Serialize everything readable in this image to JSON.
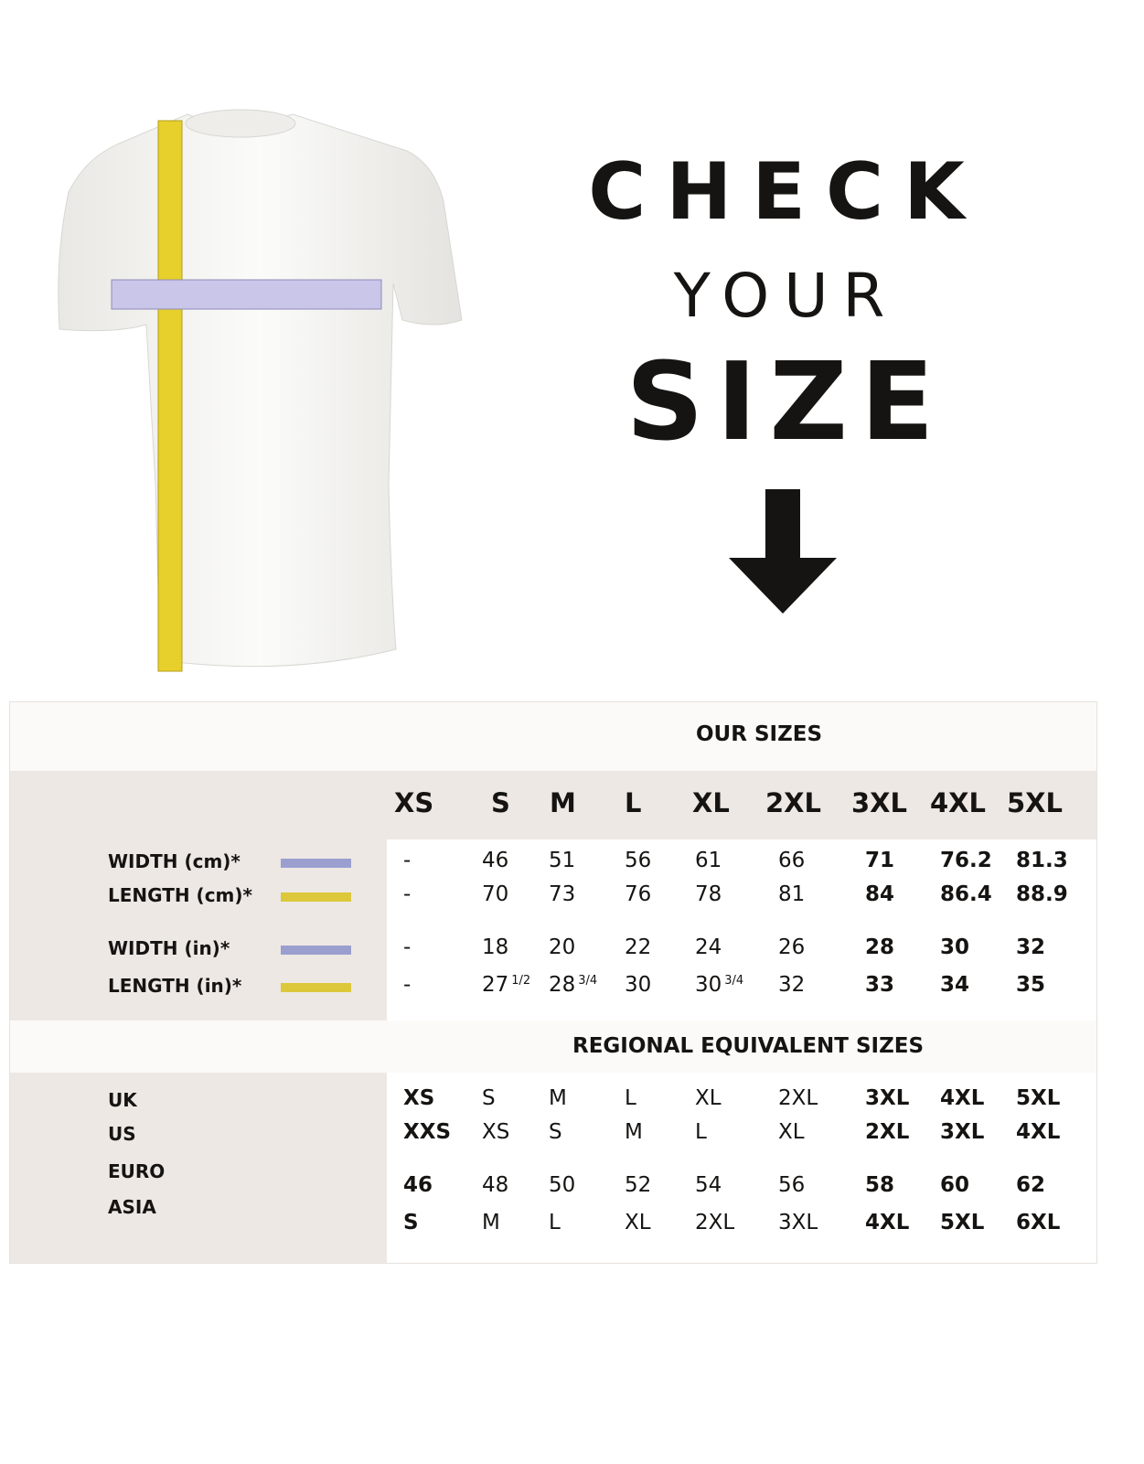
{
  "heading": {
    "line1": "CHECK",
    "line2": "YOUR",
    "line3": "SIZE"
  },
  "colors": {
    "width_swatch": "#9b9fd0",
    "length_swatch": "#dcc83a",
    "panel": "#ede8e4"
  },
  "icons": [
    "t-shirt-image",
    "tape-measure-icon",
    "down-arrow-icon"
  ],
  "our_sizes": {
    "title": "OUR SIZES",
    "sizes": [
      "XS",
      "S",
      "M",
      "L",
      "XL",
      "2XL",
      "3XL",
      "4XL",
      "5XL"
    ],
    "rows": [
      {
        "label": "WIDTH (cm)*",
        "swatch": "width",
        "values": [
          "-",
          "46",
          "51",
          "56",
          "61",
          "66",
          "71",
          "76.2",
          "81.3"
        ]
      },
      {
        "label": "LENGTH (cm)*",
        "swatch": "length",
        "values": [
          "-",
          "70",
          "73",
          "76",
          "78",
          "81",
          "84",
          "86.4",
          "88.9"
        ]
      },
      {
        "label": "WIDTH (in)*",
        "swatch": "width",
        "values": [
          "-",
          "18",
          "20",
          "22",
          "24",
          "26",
          "28",
          "30",
          "32"
        ]
      },
      {
        "label": "LENGTH (in)*",
        "swatch": "length",
        "values": [
          "-",
          "27",
          "28",
          "30",
          "30",
          "32",
          "33",
          "34",
          "35"
        ],
        "fractions": [
          "",
          "1/2",
          "3/4",
          "",
          "3/4",
          "",
          "",
          "",
          ""
        ]
      }
    ]
  },
  "regional": {
    "title": "REGIONAL EQUIVALENT SIZES",
    "rows": [
      {
        "label": "UK",
        "values": [
          "XS",
          "S",
          "M",
          "L",
          "XL",
          "2XL",
          "3XL",
          "4XL",
          "5XL"
        ]
      },
      {
        "label": "US",
        "values": [
          "XXS",
          "XS",
          "S",
          "M",
          "L",
          "XL",
          "2XL",
          "3XL",
          "4XL"
        ]
      },
      {
        "label": "EURO",
        "values": [
          "46",
          "48",
          "50",
          "52",
          "54",
          "56",
          "58",
          "60",
          "62"
        ]
      },
      {
        "label": "ASIA",
        "values": [
          "S",
          "M",
          "L",
          "XL",
          "2XL",
          "3XL",
          "4XL",
          "5XL",
          "6XL"
        ]
      }
    ]
  }
}
